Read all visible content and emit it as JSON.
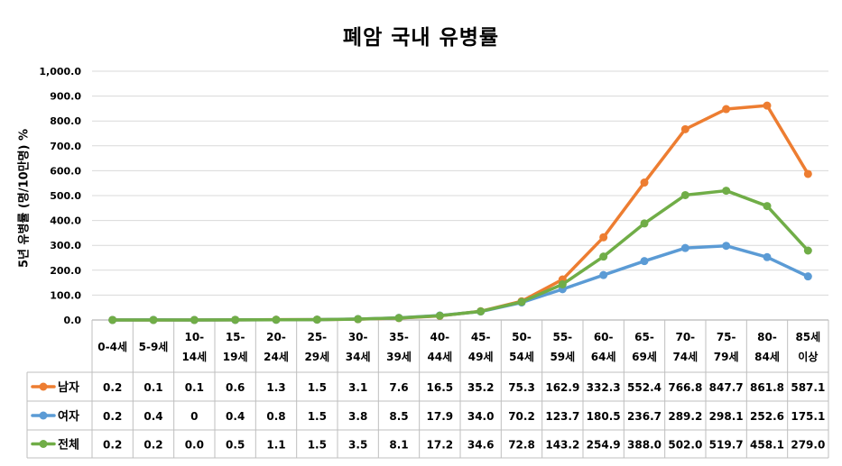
{
  "chart_data": {
    "type": "line",
    "title": "폐암 국내 유병률",
    "ylabel": "5년 유병률 (명/10만명) %",
    "xlabel": "",
    "ylim": [
      0,
      1000
    ],
    "yticks": [
      "0.0",
      "100.0",
      "200.0",
      "300.0",
      "400.0",
      "500.0",
      "600.0",
      "700.0",
      "800.0",
      "900.0",
      "1,000.0"
    ],
    "categories": [
      [
        "0-4세"
      ],
      [
        "5-9세"
      ],
      [
        "10-",
        "14세"
      ],
      [
        "15-",
        "19세"
      ],
      [
        "20-",
        "24세"
      ],
      [
        "25-",
        "29세"
      ],
      [
        "30-",
        "34세"
      ],
      [
        "35-",
        "39세"
      ],
      [
        "40-",
        "44세"
      ],
      [
        "45-",
        "49세"
      ],
      [
        "50-",
        "54세"
      ],
      [
        "55-",
        "59세"
      ],
      [
        "60-",
        "64세"
      ],
      [
        "65-",
        "69세"
      ],
      [
        "70-",
        "74세"
      ],
      [
        "75-",
        "79세"
      ],
      [
        "80-",
        "84세"
      ],
      [
        "85세",
        "이상"
      ]
    ],
    "grid": true,
    "legend": "data-table",
    "series": [
      {
        "name": "남자",
        "color": "#ED7D31",
        "labels": [
          "0.2",
          "0.1",
          "0.1",
          "0.6",
          "1.3",
          "1.5",
          "3.1",
          "7.6",
          "16.5",
          "35.2",
          "75.3",
          "162.9",
          "332.3",
          "552.4",
          "766.8",
          "847.7",
          "861.8",
          "587.1"
        ],
        "values": [
          0.2,
          0.1,
          0.1,
          0.6,
          1.3,
          1.5,
          3.1,
          7.6,
          16.5,
          35.2,
          75.3,
          162.9,
          332.3,
          552.4,
          766.8,
          847.7,
          861.8,
          587.1
        ]
      },
      {
        "name": "여자",
        "color": "#5B9BD5",
        "labels": [
          "0.2",
          "0.4",
          "0",
          "0.4",
          "0.8",
          "1.5",
          "3.8",
          "8.5",
          "17.9",
          "34.0",
          "70.2",
          "123.7",
          "180.5",
          "236.7",
          "289.2",
          "298.1",
          "252.6",
          "175.1"
        ],
        "values": [
          0.2,
          0.4,
          0,
          0.4,
          0.8,
          1.5,
          3.8,
          8.5,
          17.9,
          34.0,
          70.2,
          123.7,
          180.5,
          236.7,
          289.2,
          298.1,
          252.6,
          175.1
        ]
      },
      {
        "name": "전체",
        "color": "#70AD47",
        "labels": [
          "0.2",
          "0.2",
          "0.0",
          "0.5",
          "1.1",
          "1.5",
          "3.5",
          "8.1",
          "17.2",
          "34.6",
          "72.8",
          "143.2",
          "254.9",
          "388.0",
          "502.0",
          "519.7",
          "458.1",
          "279.0"
        ],
        "values": [
          0.2,
          0.2,
          0.0,
          0.5,
          1.1,
          1.5,
          3.5,
          8.1,
          17.2,
          34.6,
          72.8,
          143.2,
          254.9,
          388.0,
          502.0,
          519.7,
          458.1,
          279.0
        ]
      }
    ]
  }
}
